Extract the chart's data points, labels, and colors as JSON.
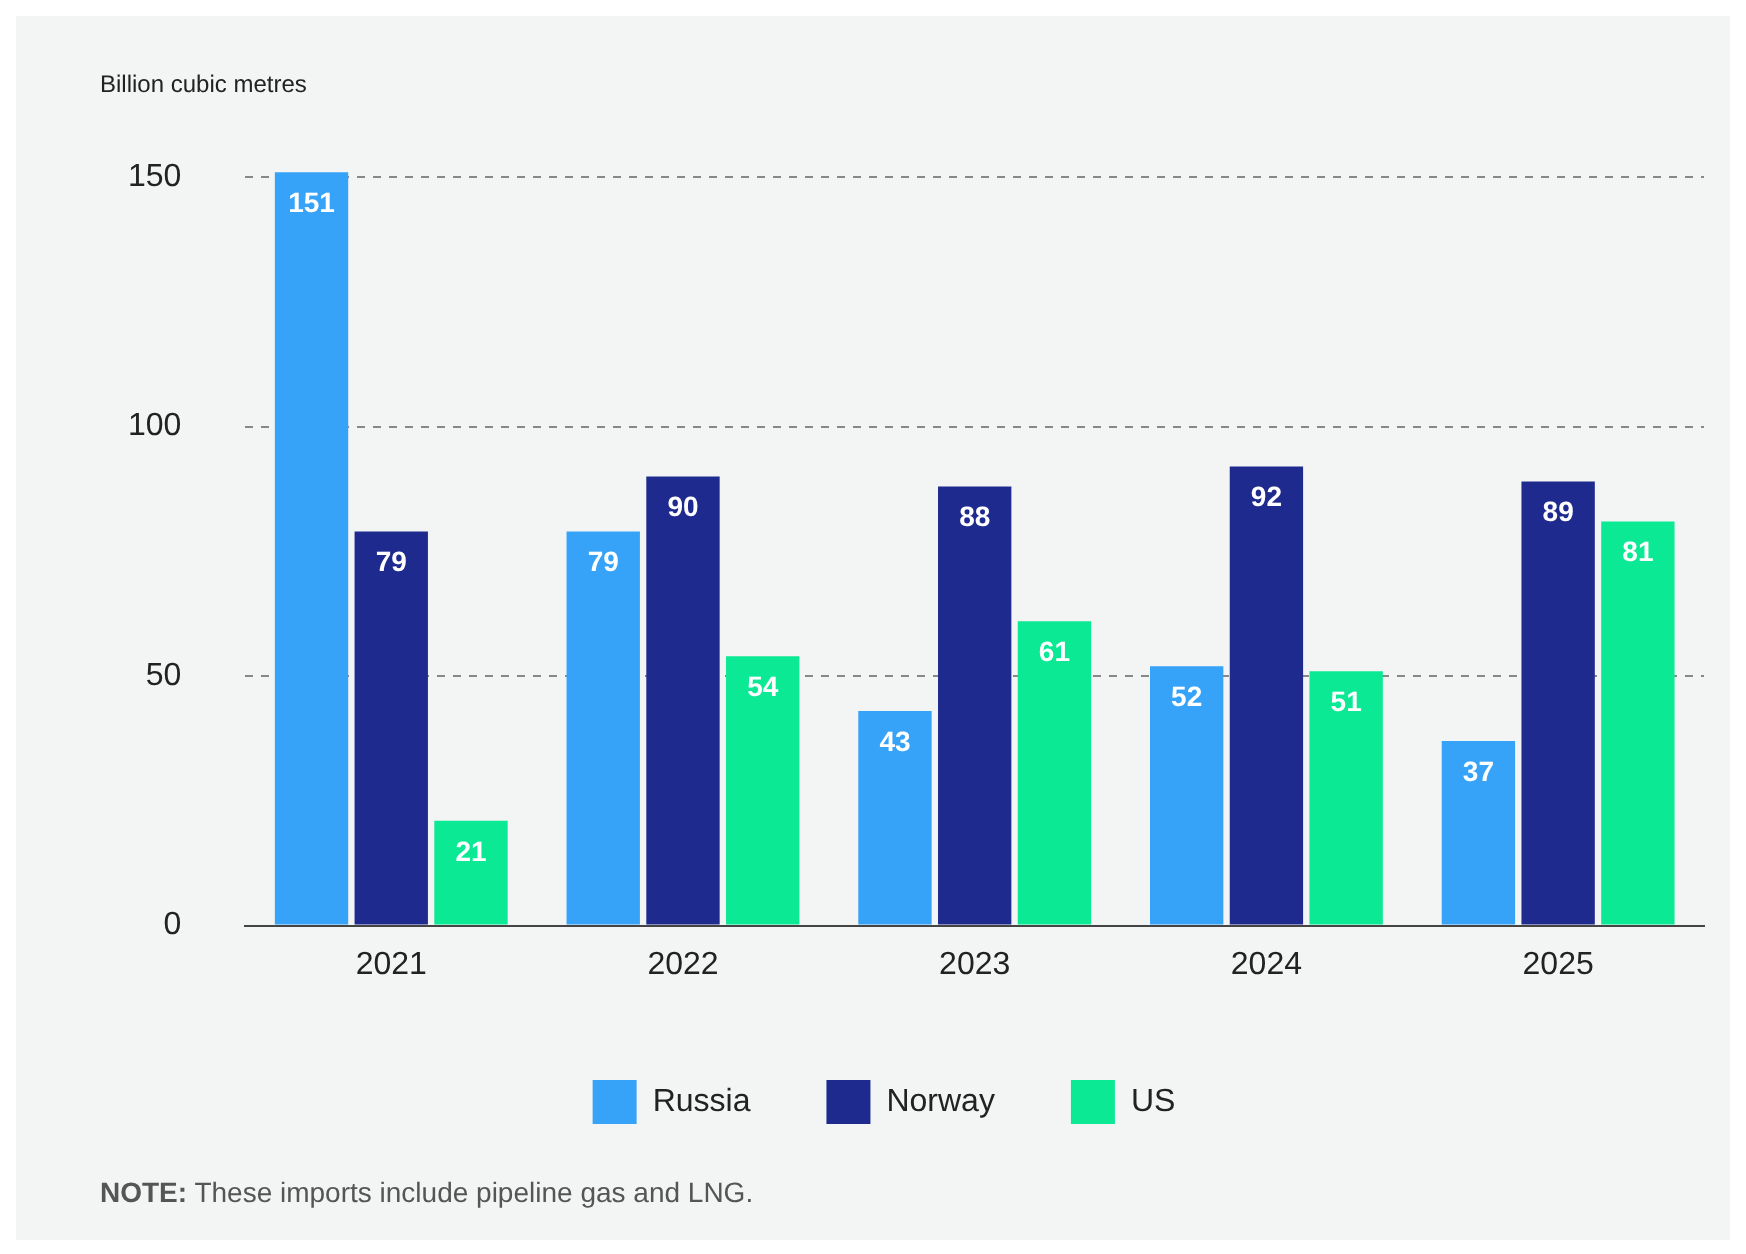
{
  "chart_data": {
    "type": "bar",
    "ylabel": "Billion cubic metres",
    "categories": [
      "2021",
      "2022",
      "2023",
      "2024",
      "2025"
    ],
    "series": [
      {
        "name": "Russia",
        "color": "#36a3f9",
        "values": [
          151,
          79,
          43,
          52,
          37
        ]
      },
      {
        "name": "Norway",
        "color": "#1f2a8e",
        "values": [
          79,
          90,
          88,
          92,
          89
        ]
      },
      {
        "name": "US",
        "color": "#0ce995",
        "values": [
          21,
          54,
          61,
          51,
          81
        ]
      }
    ],
    "ylim": [
      0,
      152
    ],
    "yticks": [
      0,
      50,
      100,
      150
    ],
    "grid": "y",
    "legend": "bottom",
    "data_labels": true,
    "annotations": [
      "NOTE: These imports include pipeline gas and LNG."
    ]
  }
}
